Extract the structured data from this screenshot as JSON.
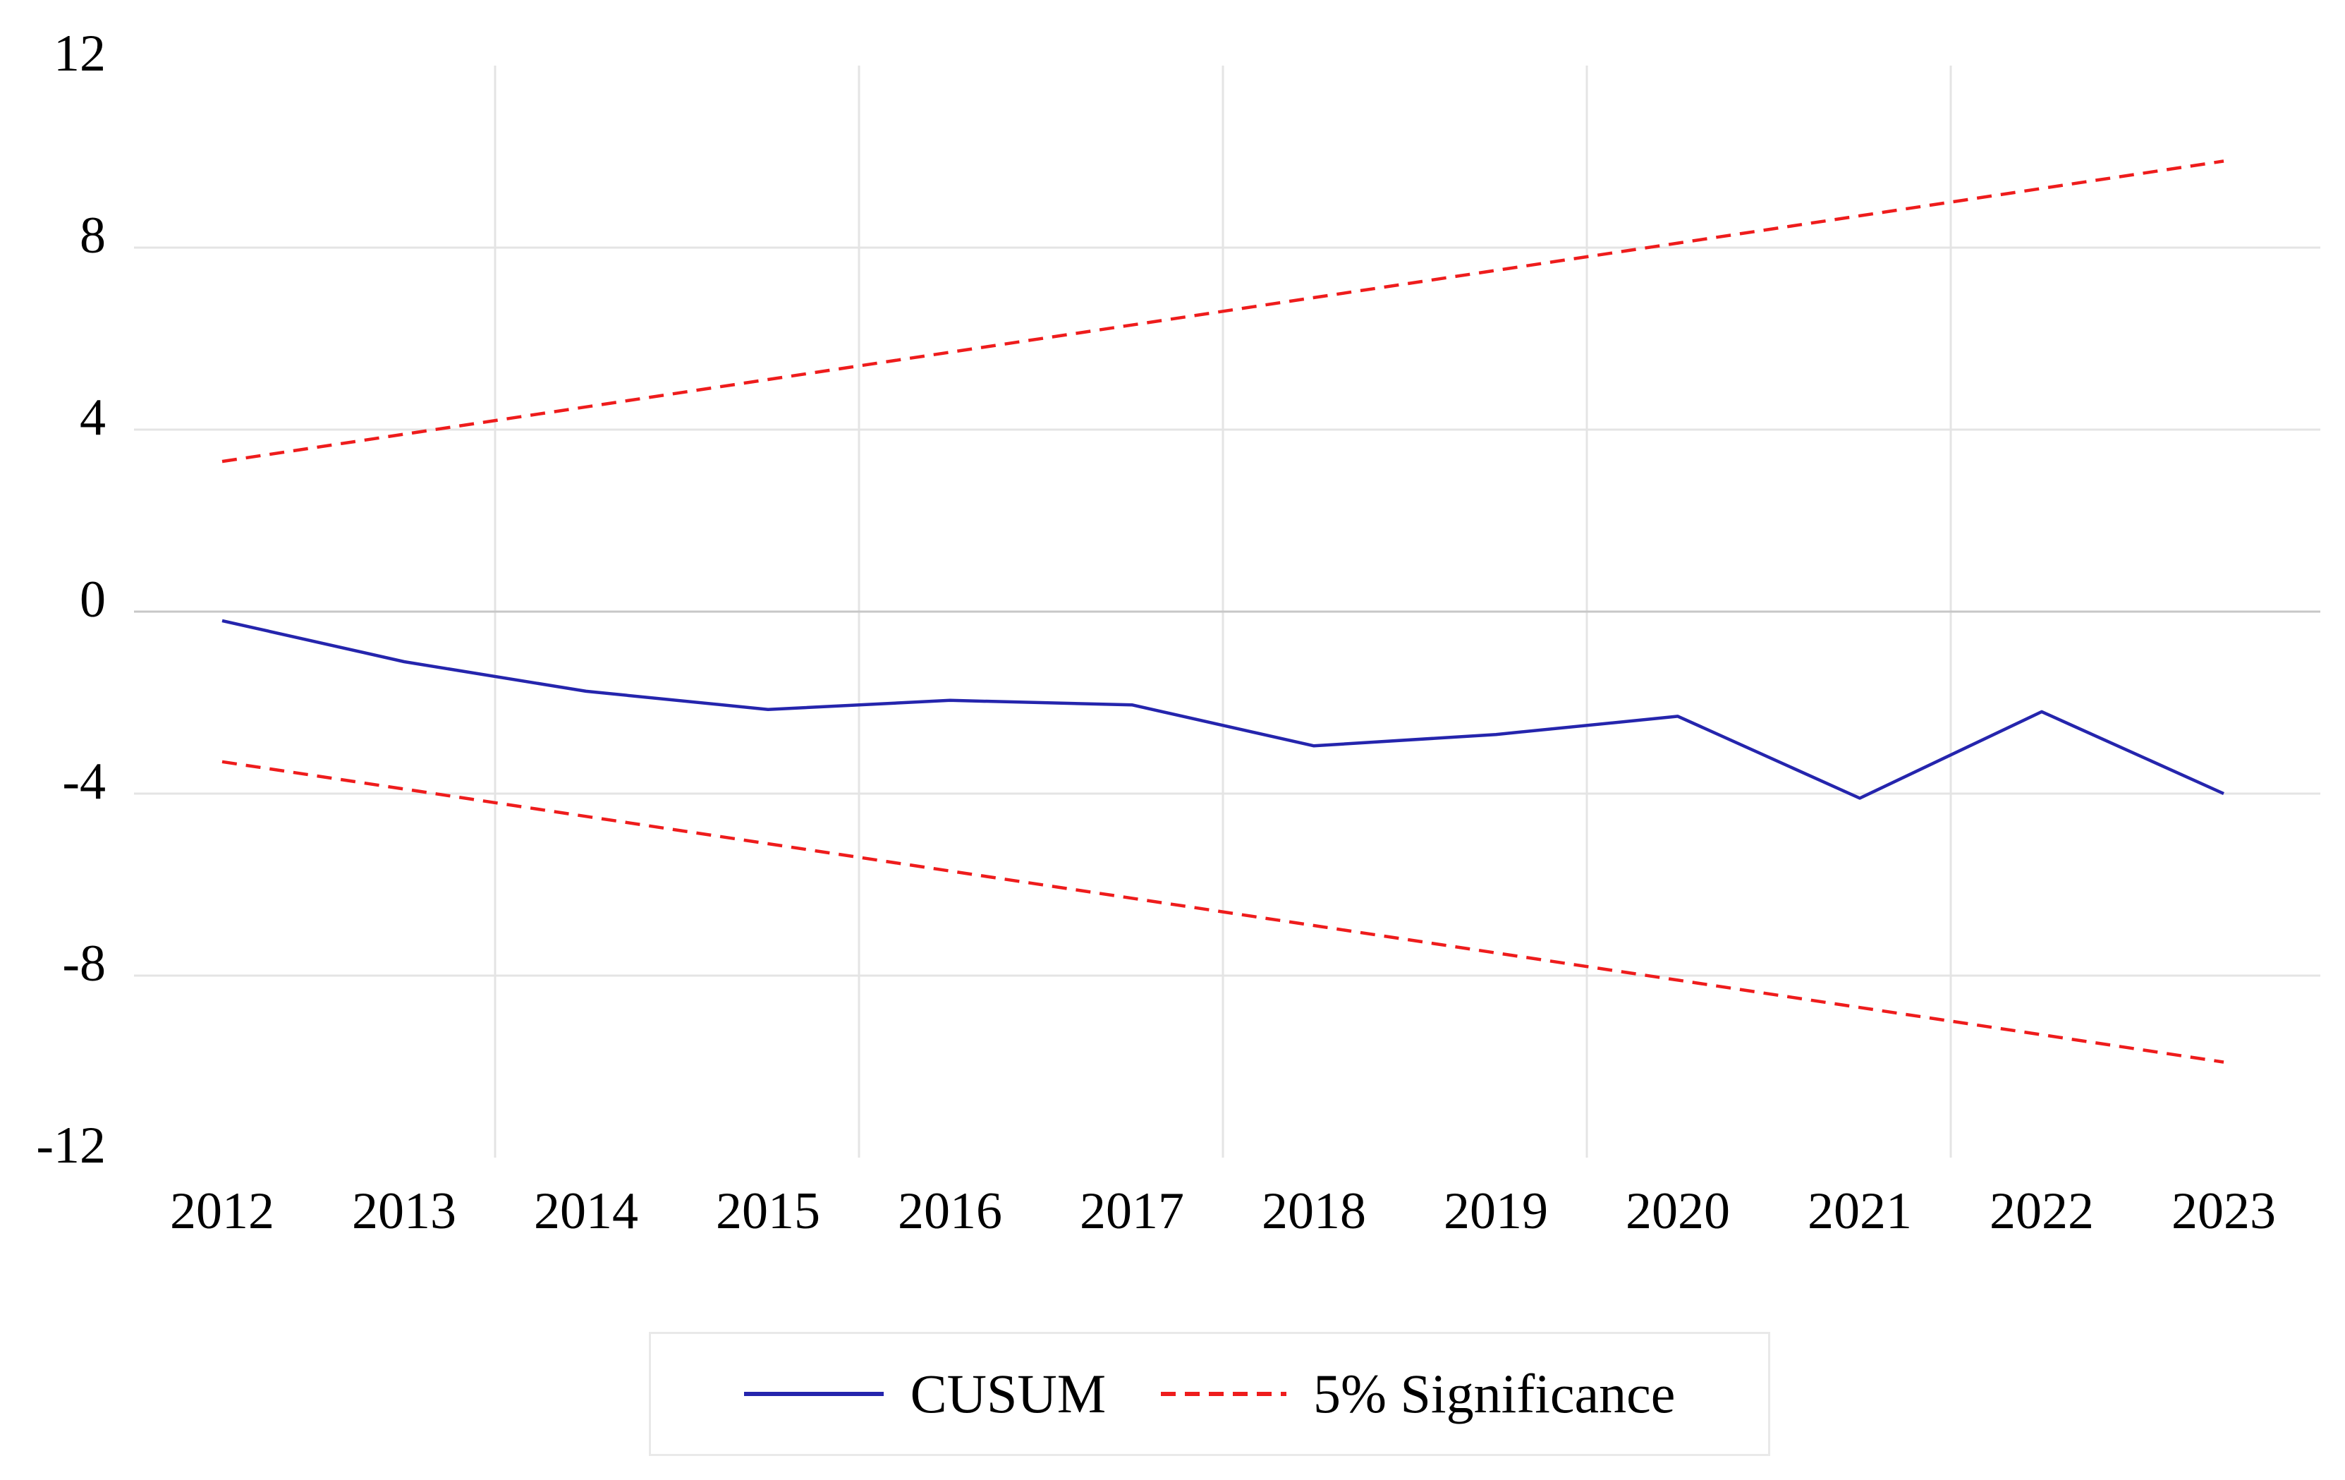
{
  "chart_data": {
    "type": "line",
    "title": "",
    "xlabel": "",
    "ylabel": "",
    "x": [
      2012,
      2013,
      2014,
      2015,
      2016,
      2017,
      2018,
      2019,
      2020,
      2021,
      2022,
      2023
    ],
    "series": [
      {
        "name": "CUSUM",
        "style": "solid",
        "color": "#2525ad",
        "values": [
          -0.2,
          -1.1,
          -1.75,
          -2.15,
          -1.95,
          -2.05,
          -2.95,
          -2.7,
          -2.3,
          -4.1,
          -2.2,
          -4.0
        ]
      },
      {
        "name": "5% Significance (upper bound)",
        "style": "dashed",
        "color": "#ee1c1c",
        "values": [
          3.3,
          3.9,
          4.5,
          5.1,
          5.7,
          6.3,
          6.9,
          7.5,
          8.1,
          8.7,
          9.3,
          9.9
        ]
      },
      {
        "name": "5% Significance (lower bound)",
        "style": "dashed",
        "color": "#ee1c1c",
        "values": [
          -3.3,
          -3.9,
          -4.5,
          -5.1,
          -5.7,
          -6.3,
          -6.9,
          -7.5,
          -8.1,
          -8.7,
          -9.3,
          -9.9
        ]
      }
    ],
    "ylim": [
      -12,
      12
    ],
    "y_ticks": [
      12,
      8,
      4,
      0,
      -4,
      -8,
      -12
    ],
    "h_gridlines_at": [
      8,
      4,
      0,
      -4,
      -8
    ],
    "v_gridlines_at_years": [
      2013.5,
      2015.5,
      2017.5,
      2019.5,
      2021.5
    ],
    "grid": true,
    "legend_position": "bottom-center"
  },
  "legend": {
    "items": [
      {
        "label": "CUSUM",
        "swatch": "solid-blue-line"
      },
      {
        "label": "5% Significance",
        "swatch": "dashed-red-line"
      }
    ]
  },
  "colors": {
    "cusum_line": "#2525ad",
    "significance_line": "#ee1c1c",
    "gridline": "#e4e4e4",
    "zero_line": "#c7c7c7",
    "legend_border": "#e9e9e9",
    "text": "#000000",
    "background": "#ffffff"
  }
}
